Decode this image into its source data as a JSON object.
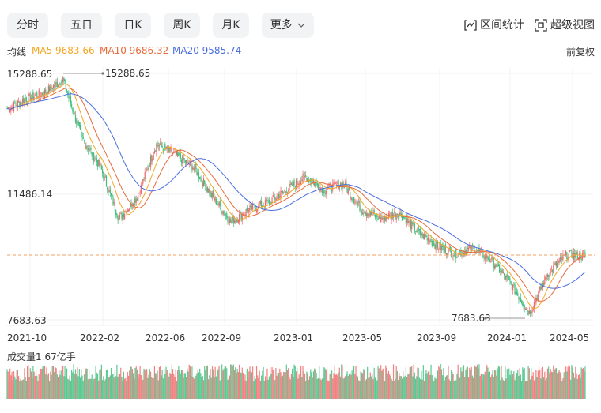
{
  "tabs": [
    {
      "label": "分时",
      "active": false
    },
    {
      "label": "五日",
      "active": false
    },
    {
      "label": "日K",
      "active": true
    },
    {
      "label": "周K",
      "active": false
    },
    {
      "label": "月K",
      "active": false
    },
    {
      "label": "更多",
      "active": false
    }
  ],
  "tools": {
    "range_stats": "区间统计",
    "super_view": "超级视图"
  },
  "legend": {
    "label": "均线",
    "ma5": "MA5 9683.66",
    "ma10": "MA10 9686.32",
    "ma20": "MA20 9585.74",
    "adjust": "前复权"
  },
  "volume": {
    "title": "成交量1.67亿手"
  },
  "colors": {
    "up": "#f06a6a",
    "down": "#3fbf7f",
    "ma5": "#f5a623",
    "ma10": "#e86a3a",
    "ma20": "#4a6ee0",
    "ref": "#f0a060"
  },
  "chart_data": {
    "type": "candlestick",
    "y_max_label": "15288.65",
    "y_mid_label": "11486.14",
    "y_min_label": "7683.63",
    "high_marker": "15288.65",
    "low_marker": "7683.63",
    "ylim": [
      7683.63,
      15288.65
    ],
    "reference_line": 9683.66,
    "x_ticks": [
      "2021-10",
      "2022-02",
      "2022-06",
      "2022-09",
      "2023-01",
      "2023-05",
      "2023-09",
      "2024-01",
      "2024-05"
    ],
    "close_path": [
      {
        "date": "2021-10",
        "value": 14200
      },
      {
        "date": "2021-11",
        "value": 14500
      },
      {
        "date": "2021-12",
        "value": 14700
      },
      {
        "date": "2022-01",
        "value": 15100
      },
      {
        "date": "2022-02",
        "value": 13300
      },
      {
        "date": "2022-03",
        "value": 12400
      },
      {
        "date": "2022-04",
        "value": 10800
      },
      {
        "date": "2022-05",
        "value": 11500
      },
      {
        "date": "2022-06",
        "value": 13100
      },
      {
        "date": "2022-07",
        "value": 12800
      },
      {
        "date": "2022-08",
        "value": 12400
      },
      {
        "date": "2022-09",
        "value": 11500
      },
      {
        "date": "2022-10",
        "value": 10700
      },
      {
        "date": "2022-11",
        "value": 11100
      },
      {
        "date": "2022-12",
        "value": 11300
      },
      {
        "date": "2023-01",
        "value": 11700
      },
      {
        "date": "2023-02",
        "value": 12100
      },
      {
        "date": "2023-03",
        "value": 11700
      },
      {
        "date": "2023-04",
        "value": 11900
      },
      {
        "date": "2023-05",
        "value": 11100
      },
      {
        "date": "2023-06",
        "value": 10800
      },
      {
        "date": "2023-07",
        "value": 11000
      },
      {
        "date": "2023-08",
        "value": 10400
      },
      {
        "date": "2023-09",
        "value": 10000
      },
      {
        "date": "2023-10",
        "value": 9700
      },
      {
        "date": "2023-11",
        "value": 9900
      },
      {
        "date": "2023-12",
        "value": 9500
      },
      {
        "date": "2024-01",
        "value": 8800
      },
      {
        "date": "2024-02",
        "value": 7900
      },
      {
        "date": "2024-03",
        "value": 9100
      },
      {
        "date": "2024-04",
        "value": 9700
      },
      {
        "date": "2024-05",
        "value": 9650
      }
    ]
  }
}
